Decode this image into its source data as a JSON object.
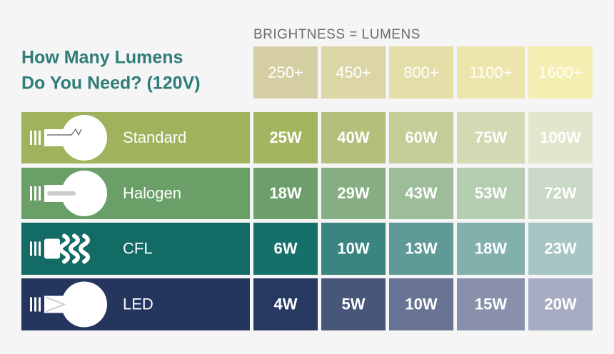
{
  "title": [
    "How Many Lumens",
    "Do You Need? (120V)"
  ],
  "header": "BRIGHTNESS = LUMENS",
  "columns": [
    "250+",
    "450+",
    "800+",
    "1100+",
    "1600+"
  ],
  "rows": [
    {
      "name": "Standard",
      "cells": [
        "25W",
        "40W",
        "60W",
        "75W",
        "100W"
      ]
    },
    {
      "name": "Halogen",
      "cells": [
        "18W",
        "29W",
        "43W",
        "53W",
        "72W"
      ]
    },
    {
      "name": "CFL",
      "cells": [
        "6W",
        "10W",
        "13W",
        "18W",
        "23W"
      ]
    },
    {
      "name": "LED",
      "cells": [
        "4W",
        "5W",
        "10W",
        "15W",
        "20W"
      ]
    }
  ]
}
